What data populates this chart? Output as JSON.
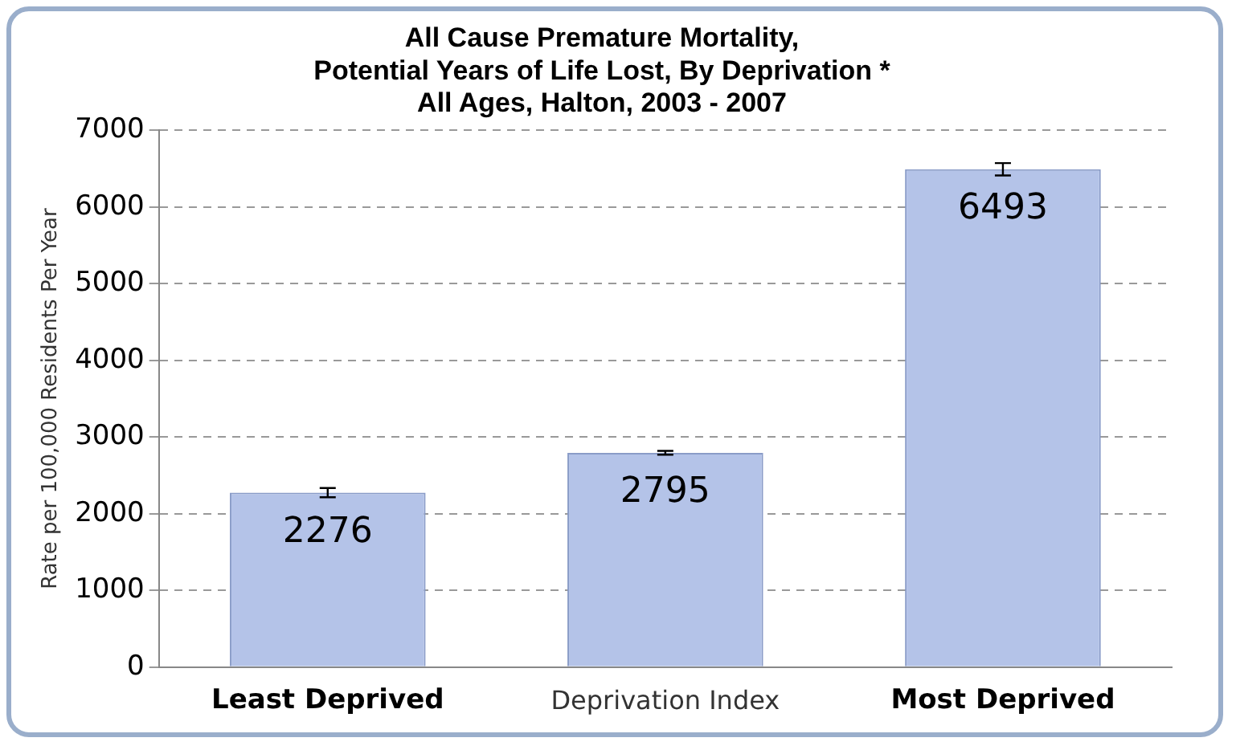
{
  "chart_data": {
    "type": "bar",
    "title": [
      "All Cause Premature Mortality,",
      "Potential Years of Life Lost, By Deprivation *",
      "All Ages, Halton, 2003 - 2007"
    ],
    "xlabel": "Deprivation Index",
    "ylabel": "Rate per 100,000 Residents Per Year",
    "categories": [
      "Least Deprived",
      null,
      "Most Deprived"
    ],
    "values": [
      2276,
      2795,
      6493
    ],
    "errors": [
      60,
      25,
      80
    ],
    "color": "#b4c3e8",
    "ylim": [
      0,
      7000
    ],
    "yticks": [
      0,
      1000,
      2000,
      3000,
      4000,
      5000,
      6000,
      7000
    ],
    "grid": "y",
    "data_labels": true,
    "legend": false
  }
}
